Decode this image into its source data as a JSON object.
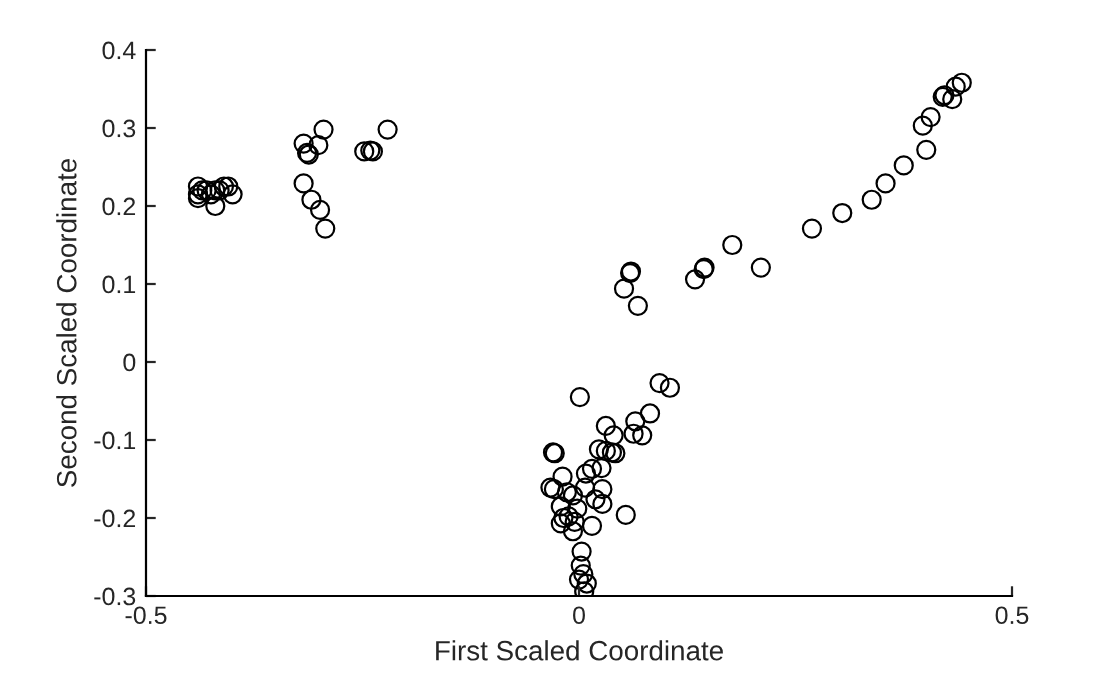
{
  "chart_data": {
    "type": "scatter",
    "xlabel": "First Scaled Coordinate",
    "ylabel": "Second Scaled Coordinate",
    "xlim": [
      -0.5,
      0.5
    ],
    "xticks": [
      -0.5,
      0,
      0.5
    ],
    "ylim": [
      -0.3,
      0.4
    ],
    "yticks": [
      -0.3,
      -0.2,
      -0.1,
      0,
      0.1,
      0.2,
      0.3,
      0.4
    ],
    "marker": "circle",
    "grid": false,
    "series": [
      {
        "color": "#000000",
        "x": [
          -0.44,
          -0.44,
          -0.44,
          -0.435,
          -0.43,
          -0.425,
          -0.42,
          -0.42,
          -0.41,
          -0.405,
          -0.4,
          -0.415,
          -0.318,
          -0.312,
          -0.314,
          -0.301,
          -0.295,
          -0.318,
          -0.309,
          -0.299,
          -0.293,
          -0.248,
          -0.241,
          -0.238,
          -0.221,
          0.06,
          0.059,
          0.052,
          0.068,
          0.134,
          0.144,
          0.145,
          0.177,
          0.21,
          0.269,
          0.304,
          0.338,
          0.354,
          0.375,
          0.401,
          0.397,
          0.406,
          0.42,
          0.422,
          0.431,
          0.435,
          0.442,
          0.001,
          0.093,
          0.105,
          0.082,
          0.065,
          0.063,
          0.073,
          0.031,
          0.04,
          0.023,
          0.031,
          0.038,
          0.042,
          -0.03,
          -0.028,
          0.015,
          0.008,
          0.026,
          -0.019,
          -0.033,
          -0.029,
          0.007,
          0.027,
          -0.014,
          -0.007,
          -0.021,
          -0.002,
          0.019,
          0.027,
          -0.018,
          -0.012,
          -0.021,
          -0.005,
          -0.007,
          0.015,
          0.054,
          0.003,
          0.002,
          0.005,
          0.0,
          0.009,
          0.006
        ],
        "values": [
          0.225,
          0.215,
          0.21,
          0.22,
          0.22,
          0.215,
          0.2,
          0.22,
          0.225,
          0.225,
          0.215,
          0.22,
          0.28,
          0.266,
          0.268,
          0.278,
          0.298,
          0.229,
          0.208,
          0.195,
          0.171,
          0.27,
          0.271,
          0.27,
          0.298,
          0.116,
          0.114,
          0.094,
          0.072,
          0.106,
          0.119,
          0.121,
          0.15,
          0.121,
          0.171,
          0.191,
          0.208,
          0.229,
          0.252,
          0.272,
          0.303,
          0.314,
          0.34,
          0.342,
          0.337,
          0.353,
          0.358,
          -0.045,
          -0.027,
          -0.033,
          -0.066,
          -0.076,
          -0.092,
          -0.094,
          -0.082,
          -0.094,
          -0.112,
          -0.114,
          -0.116,
          -0.117,
          -0.116,
          -0.117,
          -0.137,
          -0.143,
          -0.136,
          -0.147,
          -0.161,
          -0.163,
          -0.161,
          -0.163,
          -0.167,
          -0.171,
          -0.185,
          -0.188,
          -0.176,
          -0.182,
          -0.2,
          -0.198,
          -0.207,
          -0.205,
          -0.217,
          -0.21,
          -0.196,
          -0.243,
          -0.261,
          -0.272,
          -0.279,
          -0.284,
          -0.294
        ]
      }
    ]
  }
}
